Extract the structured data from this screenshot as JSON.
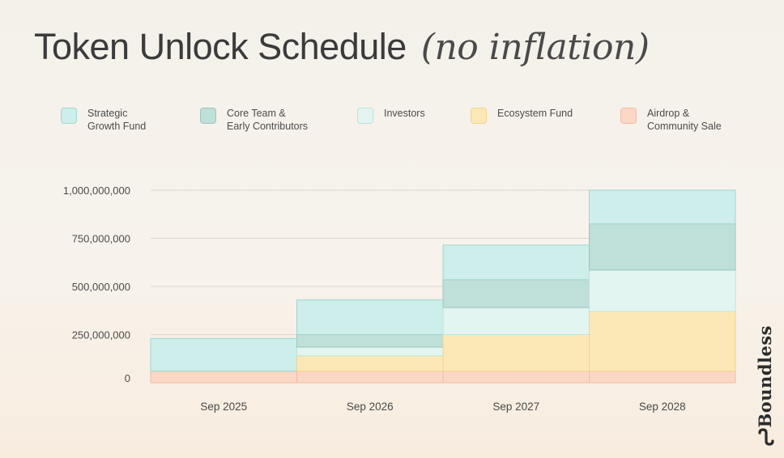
{
  "title": "Token Unlock Schedule",
  "subtitle": "(no inflation)",
  "brand": {
    "name": "Boundless",
    "logo_icon": "boundless-logo-icon"
  },
  "colors": {
    "strategic": "#cdeeea",
    "core": "#bfdfd9",
    "investors": "#e3f5f1",
    "ecosystem": "#fce8b6",
    "airdrop": "#fbd7c6"
  },
  "chart_data": {
    "type": "area",
    "stacked": true,
    "step": true,
    "categories": [
      "Sep 2025",
      "Sep 2026",
      "Sep 2027",
      "Sep 2028"
    ],
    "y_ticks": [
      "1,000,000,000",
      "750,000,000",
      "500,000,000",
      "250,000,000",
      "0"
    ],
    "y_tick_values": [
      1000000000,
      750000000,
      500000000,
      250000000,
      0
    ],
    "ylim": [
      0,
      1000000000
    ],
    "grid": true,
    "legend_position": "top",
    "series": [
      {
        "name": "Airdrop & Community Sale",
        "key": "airdrop",
        "values": [
          60000000,
          60000000,
          60000000,
          60000000
        ]
      },
      {
        "name": "Ecosystem Fund",
        "key": "ecosystem",
        "values": [
          0,
          80000000,
          190000000,
          310000000
        ]
      },
      {
        "name": "Investors",
        "key": "investors",
        "values": [
          0,
          45000000,
          140000000,
          215000000
        ]
      },
      {
        "name": "Core Team & Early Contributors",
        "key": "core",
        "values": [
          0,
          65000000,
          145000000,
          240000000
        ]
      },
      {
        "name": "Strategic Growth Fund",
        "key": "strategic",
        "values": [
          170000000,
          180000000,
          180000000,
          175000000
        ]
      }
    ]
  },
  "legend": [
    {
      "key": "strategic",
      "line1": "Strategic",
      "line2": "Growth Fund"
    },
    {
      "key": "core",
      "line1": "Core Team &",
      "line2": "Early Contributors"
    },
    {
      "key": "investors",
      "line1": "Investors",
      "line2": ""
    },
    {
      "key": "ecosystem",
      "line1": "Ecosystem Fund",
      "line2": ""
    },
    {
      "key": "airdrop",
      "line1": "Airdrop &",
      "line2": "Community Sale"
    }
  ]
}
